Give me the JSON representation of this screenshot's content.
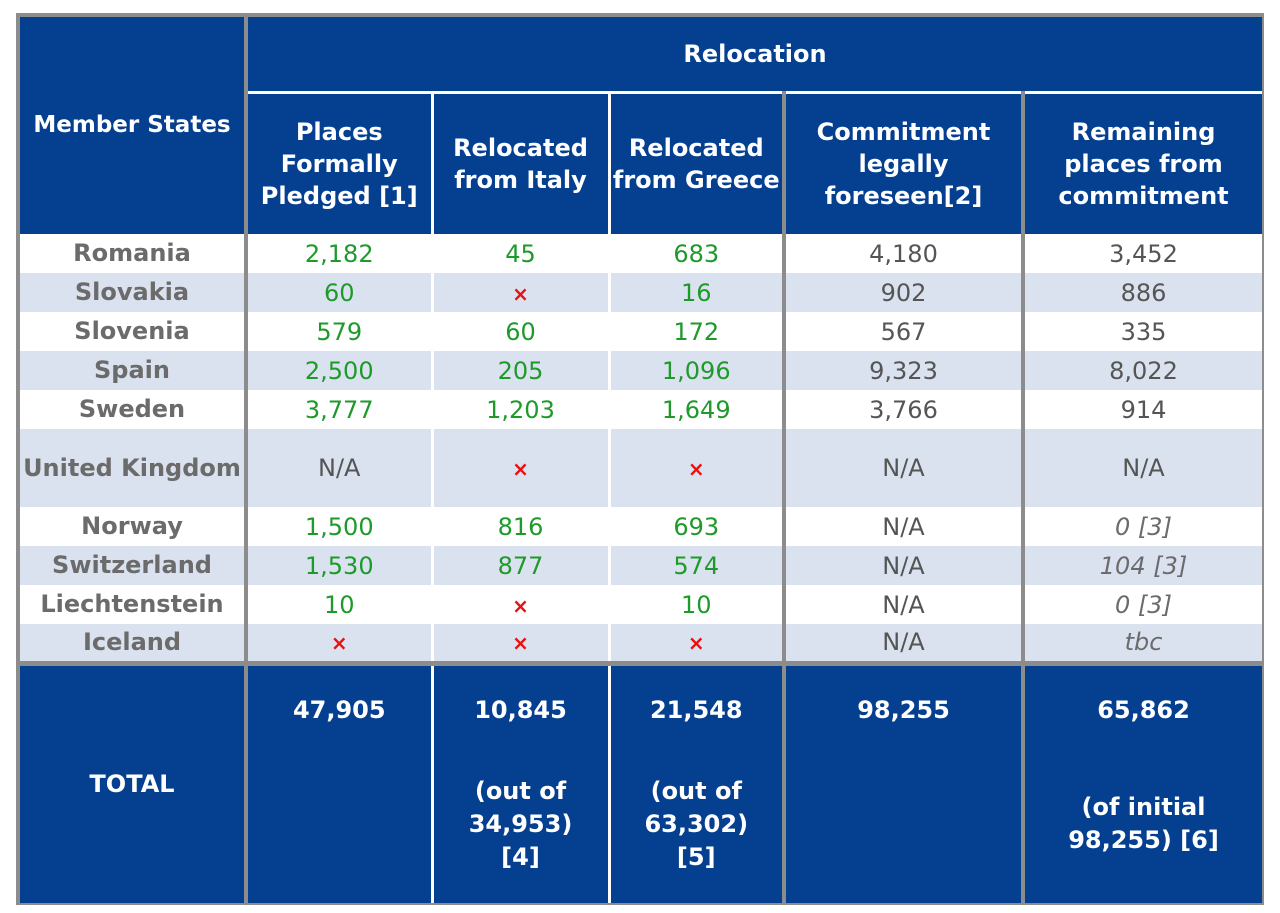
{
  "header": {
    "member_states": "Member States",
    "relocation": "Relocation",
    "columns": [
      "Places Formally Pledged [1]",
      "Relocated from Italy",
      "Relocated from Greece",
      "Commitment legally foreseen[2]",
      "Remaining places from commitment"
    ]
  },
  "rows": [
    {
      "state": "Romania",
      "pledged": "2,182",
      "italy": "45",
      "greece": "683",
      "commitment": "4,180",
      "remaining": "3,452"
    },
    {
      "state": "Slovakia",
      "pledged": "60",
      "italy": "×",
      "greece": "16",
      "commitment": "902",
      "remaining": "886"
    },
    {
      "state": "Slovenia",
      "pledged": "579",
      "italy": "60",
      "greece": "172",
      "commitment": "567",
      "remaining": "335"
    },
    {
      "state": "Spain",
      "pledged": "2,500",
      "italy": "205",
      "greece": "1,096",
      "commitment": "9,323",
      "remaining": "8,022"
    },
    {
      "state": "Sweden",
      "pledged": "3,777",
      "italy": "1,203",
      "greece": "1,649",
      "commitment": "3,766",
      "remaining": "914"
    },
    {
      "state": "United Kingdom",
      "pledged": "N/A",
      "italy": "×",
      "greece": "×",
      "commitment": "N/A",
      "remaining": "N/A"
    },
    {
      "state": "Norway",
      "pledged": "1,500",
      "italy": "816",
      "greece": "693",
      "commitment": "N/A",
      "remaining": "0 [3]"
    },
    {
      "state": "Switzerland",
      "pledged": "1,530",
      "italy": "877",
      "greece": "574",
      "commitment": "N/A",
      "remaining": "104 [3]"
    },
    {
      "state": "Liechtenstein",
      "pledged": "10",
      "italy": "×",
      "greece": "10",
      "commitment": "N/A",
      "remaining": "0 [3]"
    },
    {
      "state": "Iceland",
      "pledged": "×",
      "italy": "×",
      "greece": "×",
      "commitment": "N/A",
      "remaining": "tbc"
    }
  ],
  "total": {
    "label": "TOTAL",
    "pledged": "47,905",
    "italy": "10,845",
    "italy_note_1": "(out of",
    "italy_note_2": "34,953)",
    "italy_note_3": "[4]",
    "greece": "21,548",
    "greece_note_1": "(out of",
    "greece_note_2": "63,302)",
    "greece_note_3": "[5]",
    "commitment": "98,255",
    "remaining": "65,862",
    "remaining_note_1": "(of initial",
    "remaining_note_2": "98,255) [6]"
  },
  "colors": {
    "header_blue": "#053f90",
    "value_green": "#1e9a2a",
    "cross_red": "#e81010",
    "row_stripe": "#dbe2ef"
  }
}
